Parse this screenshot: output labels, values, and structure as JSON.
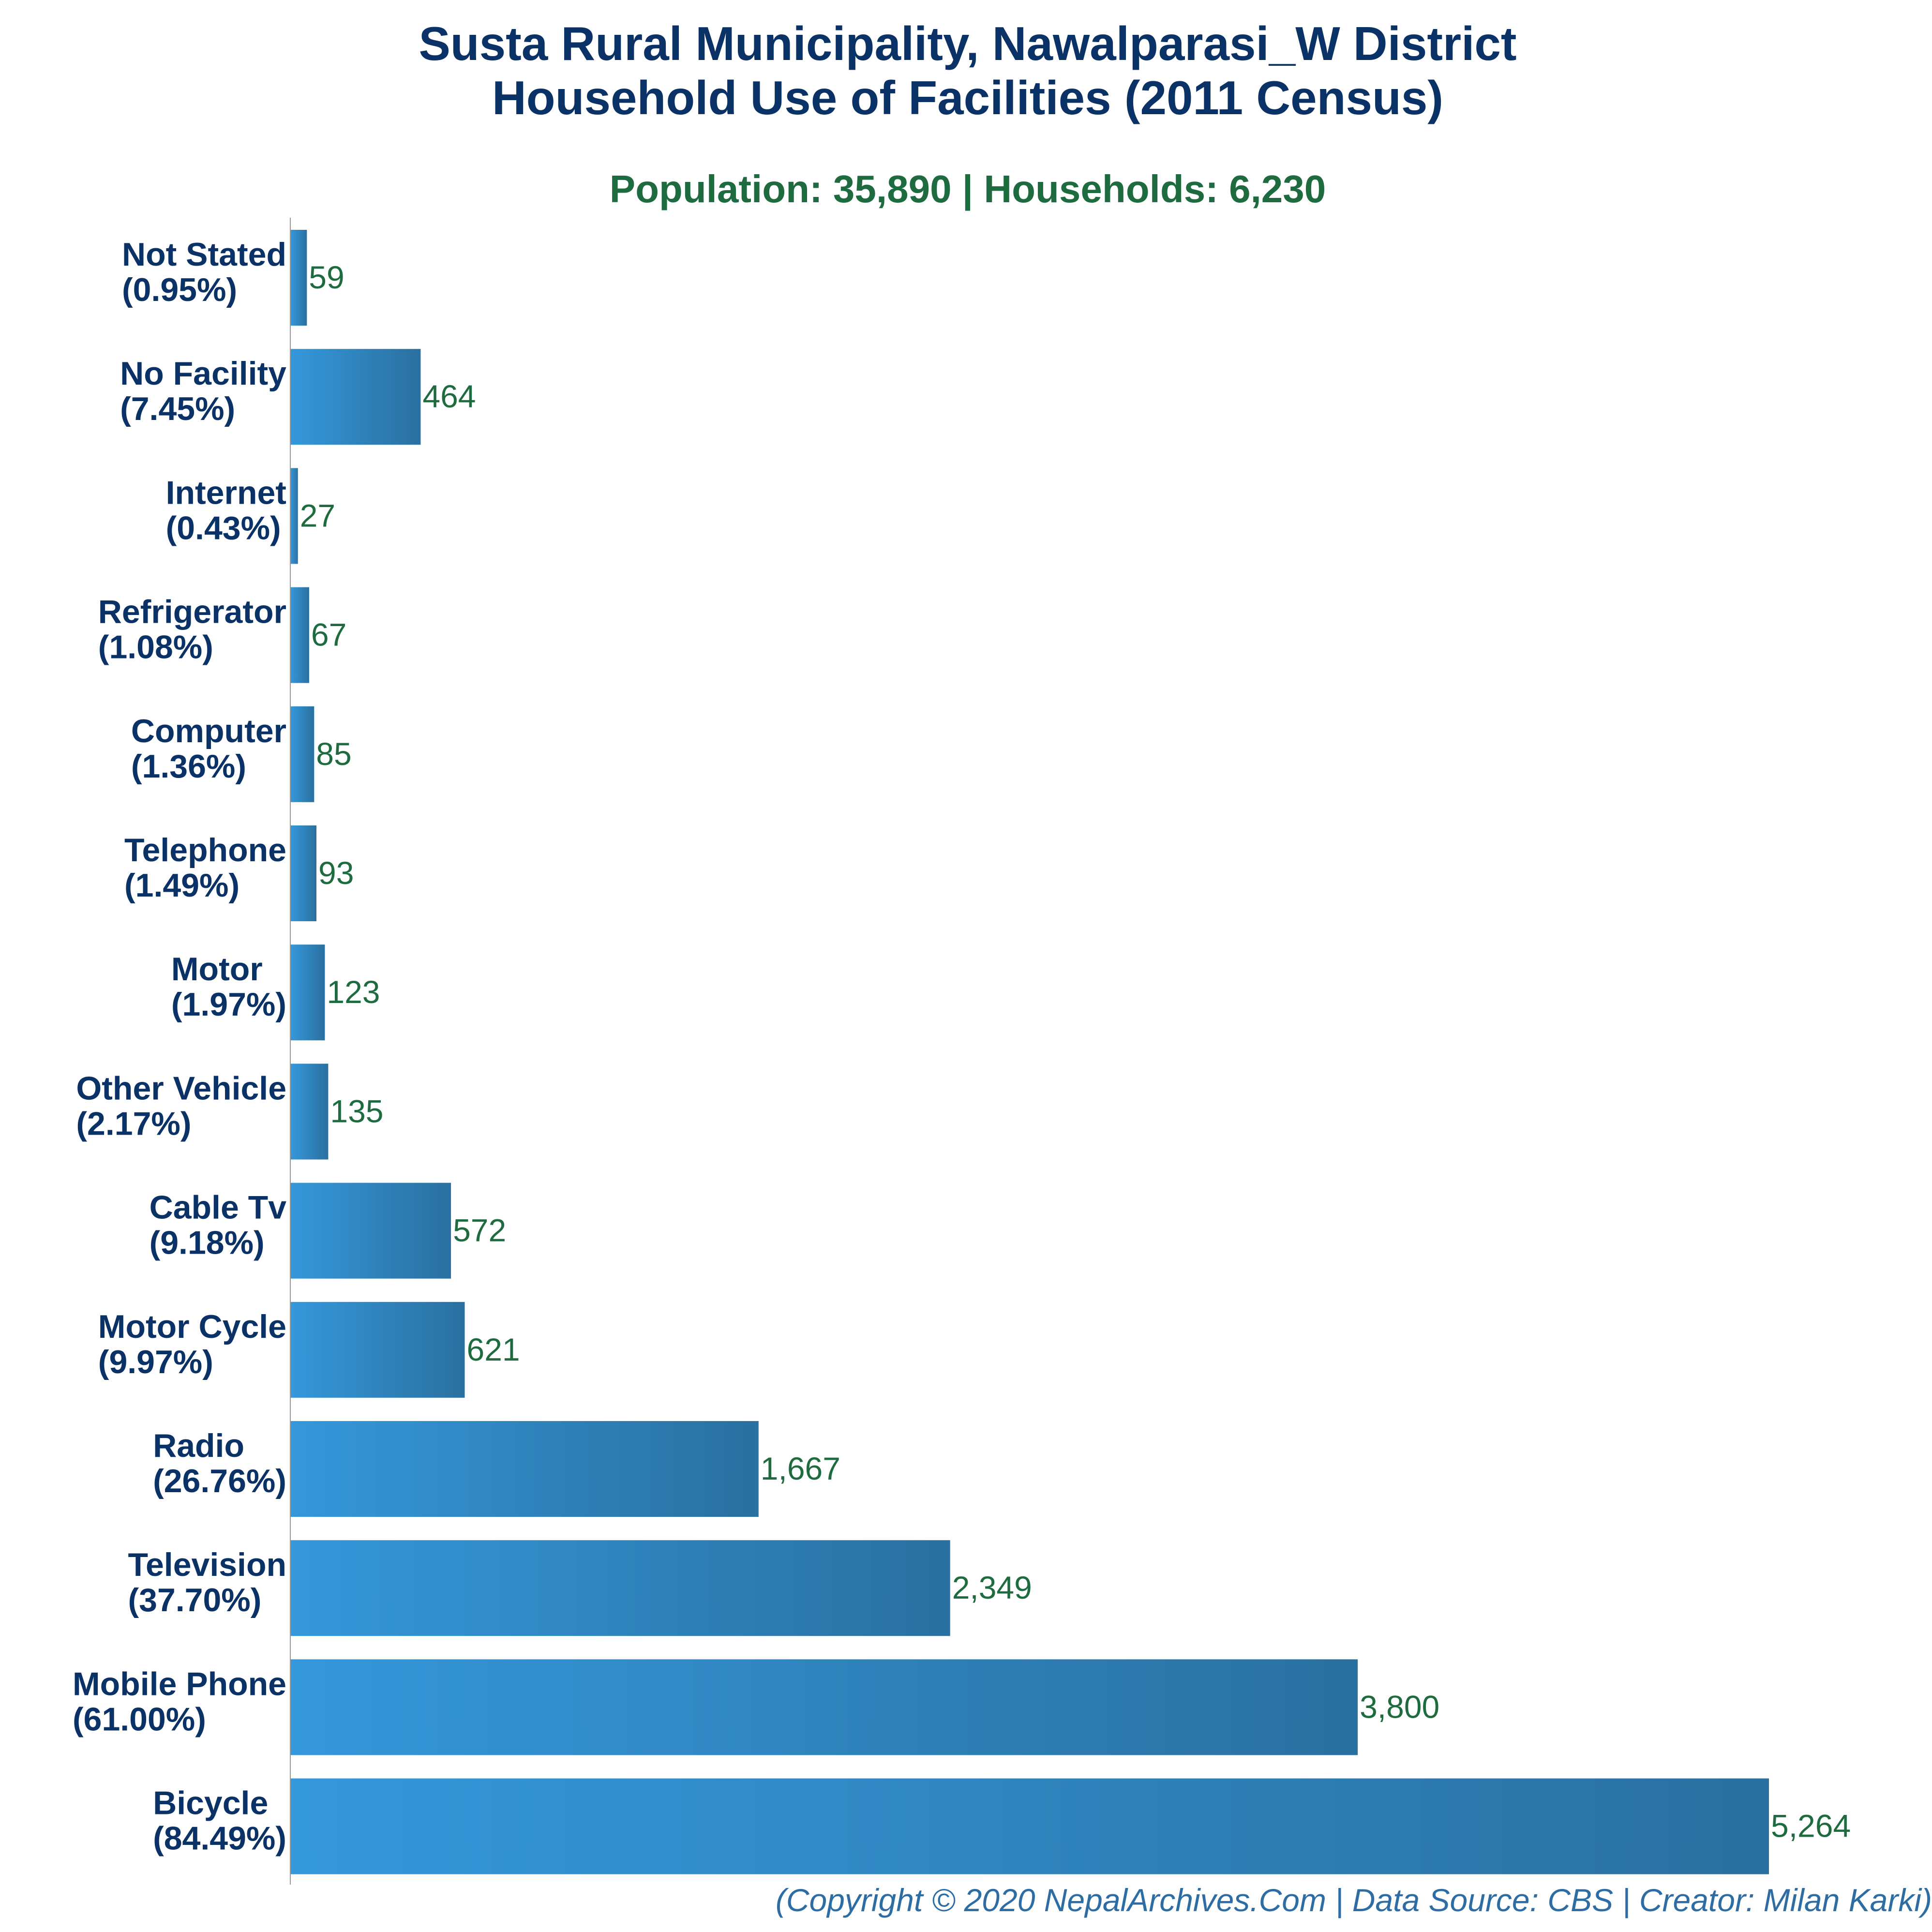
{
  "title_line1": "Susta Rural Municipality, Nawalparasi_W District",
  "title_line2": "Household Use of Facilities (2011 Census)",
  "subtitle": "Population: 35,890 | Households: 6,230",
  "footer": "(Copyright © 2020 NepalArchives.Com | Data Source: CBS | Creator: Milan Karki)",
  "colors": {
    "title": "#0b3266",
    "subtitle": "#1e6b3f",
    "value_label": "#1e6b3f",
    "footer": "#2e6da4",
    "bar_left": "#3598db",
    "bar_right": "#2a70a0",
    "axis": "#9a9a9a"
  },
  "chart_data": {
    "type": "bar",
    "orientation": "horizontal",
    "title": "Susta Rural Municipality, Nawalparasi_W District Household Use of Facilities (2011 Census)",
    "subtitle": "Population: 35,890 | Households: 6,230",
    "categories": [
      "Not Stated",
      "No Facility",
      "Internet",
      "Refrigerator",
      "Computer",
      "Telephone",
      "Motor",
      "Other Vehicle",
      "Cable Tv",
      "Motor Cycle",
      "Radio",
      "Television",
      "Mobile Phone",
      "Bicycle"
    ],
    "percent_labels": [
      "(0.95%)",
      "(7.45%)",
      "(0.43%)",
      "(1.08%)",
      "(1.36%)",
      "(1.49%)",
      "(1.97%)",
      "(2.17%)",
      "(9.18%)",
      "(9.97%)",
      "(26.76%)",
      "(37.70%)",
      "(61.00%)",
      "(84.49%)"
    ],
    "values": [
      59,
      464,
      27,
      67,
      85,
      93,
      123,
      135,
      572,
      621,
      1667,
      2349,
      3800,
      5264
    ],
    "value_labels": [
      "59",
      "464",
      "27",
      "67",
      "85",
      "93",
      "123",
      "135",
      "572",
      "621",
      "1,667",
      "2,349",
      "3,800",
      "5,264"
    ],
    "xlim": [
      0,
      5264
    ],
    "grid": false,
    "legend": "none"
  }
}
